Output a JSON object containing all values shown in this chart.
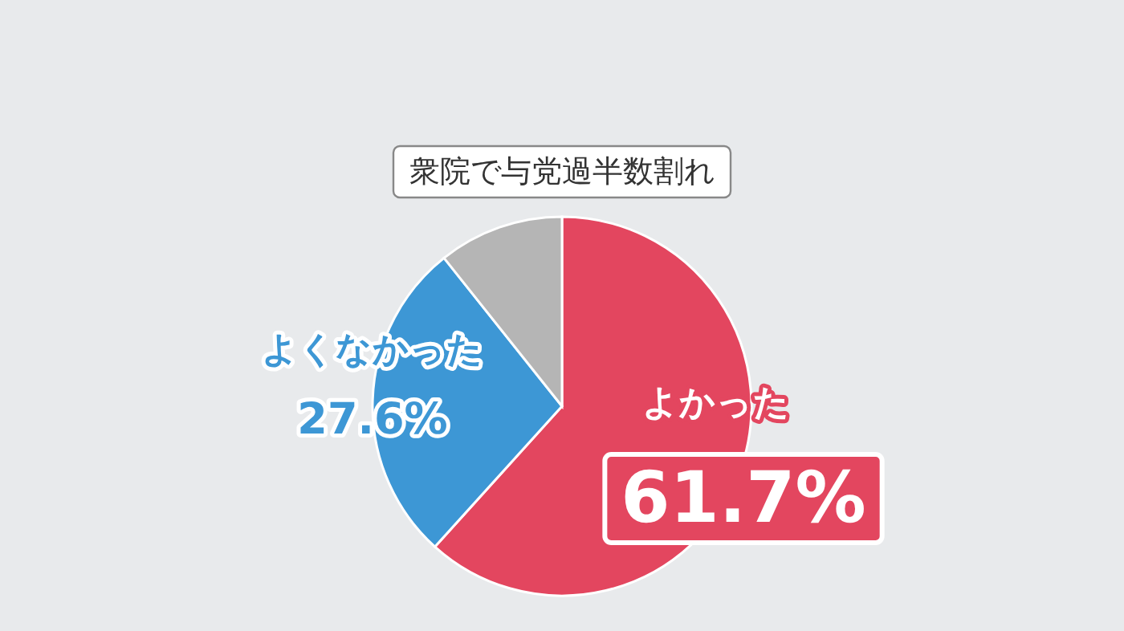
{
  "chart_data": {
    "type": "pie",
    "title": "衆院で与党過半数割れ",
    "categories": [
      "よかった",
      "よくなかった",
      null
    ],
    "values": [
      61.7,
      27.6,
      10.7
    ],
    "colors": [
      "#e3465f",
      "#3d97d5",
      "#b5b5b5"
    ],
    "value_labels": [
      "61.7%",
      "27.6%",
      null
    ]
  }
}
